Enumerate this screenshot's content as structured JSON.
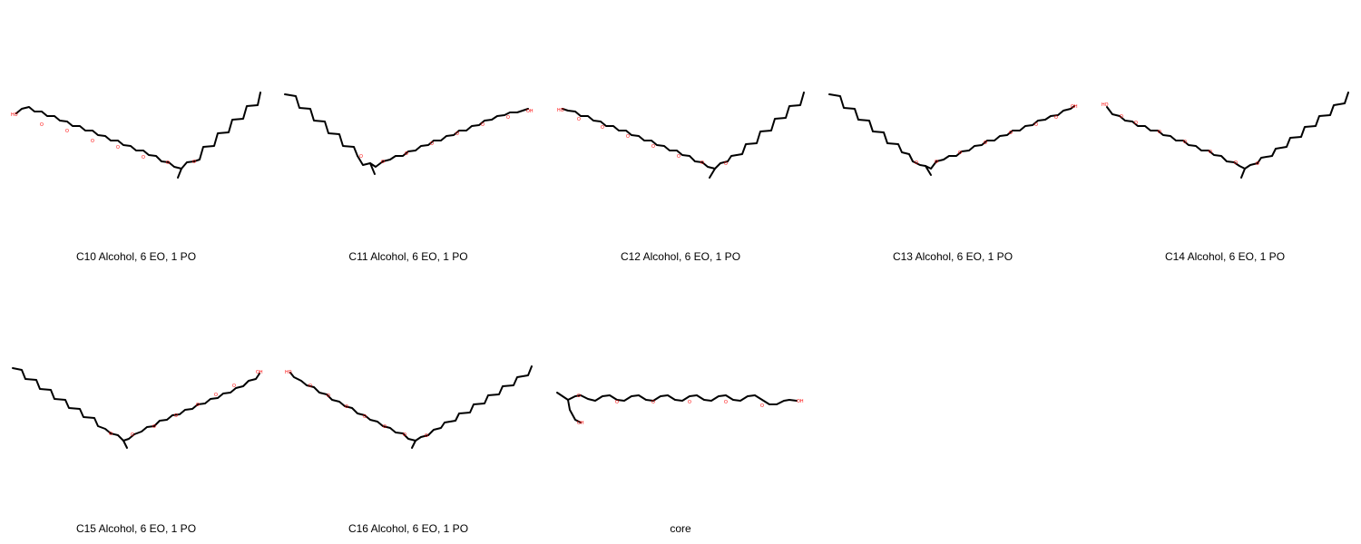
{
  "colors": {
    "carbon_bond": "#000000",
    "heteroatom": "#ff0000",
    "background": "#ffffff"
  },
  "molecules": [
    {
      "legend": "C10 Alcohol, 6 EO, 1 PO",
      "oxygen_label": "O",
      "hydroxyl_label": "HO"
    },
    {
      "legend": "C11 Alcohol, 6 EO, 1 PO",
      "oxygen_label": "O",
      "hydroxyl_label": "OH"
    },
    {
      "legend": "C12 Alcohol, 6 EO, 1 PO",
      "oxygen_label": "O",
      "hydroxyl_label": "HO"
    },
    {
      "legend": "C13 Alcohol, 6 EO, 1 PO",
      "oxygen_label": "O",
      "hydroxyl_label": "OH"
    },
    {
      "legend": "C14 Alcohol, 6 EO, 1 PO",
      "oxygen_label": "O",
      "hydroxyl_label": "HO"
    },
    {
      "legend": "C15 Alcohol, 6 EO, 1 PO",
      "oxygen_label": "O",
      "hydroxyl_label": "OH"
    },
    {
      "legend": "C16 Alcohol, 6 EO, 1 PO",
      "oxygen_label": "O",
      "hydroxyl_label": "HO"
    },
    {
      "legend": "core",
      "oxygen_label": "O",
      "hydroxyl_label": "OH"
    }
  ]
}
